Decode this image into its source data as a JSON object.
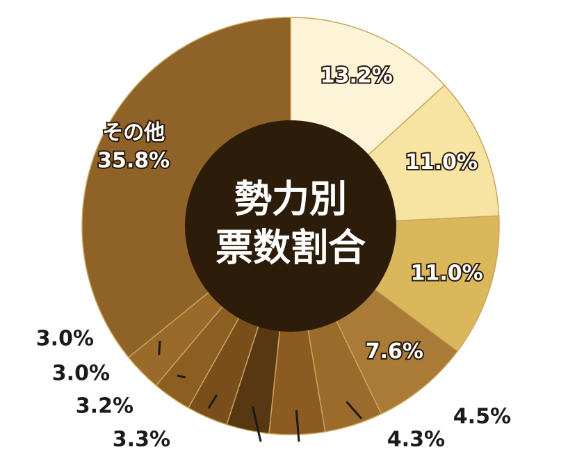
{
  "chart_data": {
    "type": "donut",
    "title": [
      "勢力別",
      "票数割合"
    ],
    "categories": [
      null,
      null,
      null,
      null,
      null,
      null,
      null,
      null,
      null,
      null,
      "その他"
    ],
    "values": [
      13.2,
      11.0,
      11.0,
      7.6,
      4.5,
      4.3,
      3.3,
      3.2,
      3.0,
      3.0,
      35.8
    ],
    "value_labels": [
      "13.2%",
      "11.0%",
      "11.0%",
      "7.6%",
      "4.5%",
      "4.3%",
      "3.3%",
      "3.2%",
      "3.0%",
      "3.0%",
      "35.8%"
    ],
    "colors": [
      "#fdf4d8",
      "#f8e4a2",
      "#dbb75c",
      "#a97b36",
      "#9b6b2b",
      "#8b5b21",
      "#573812",
      "#7a4e1a",
      "#8c5e22",
      "#9a6a2a",
      "#8f6328"
    ],
    "center_color": "#2d1c0a"
  }
}
